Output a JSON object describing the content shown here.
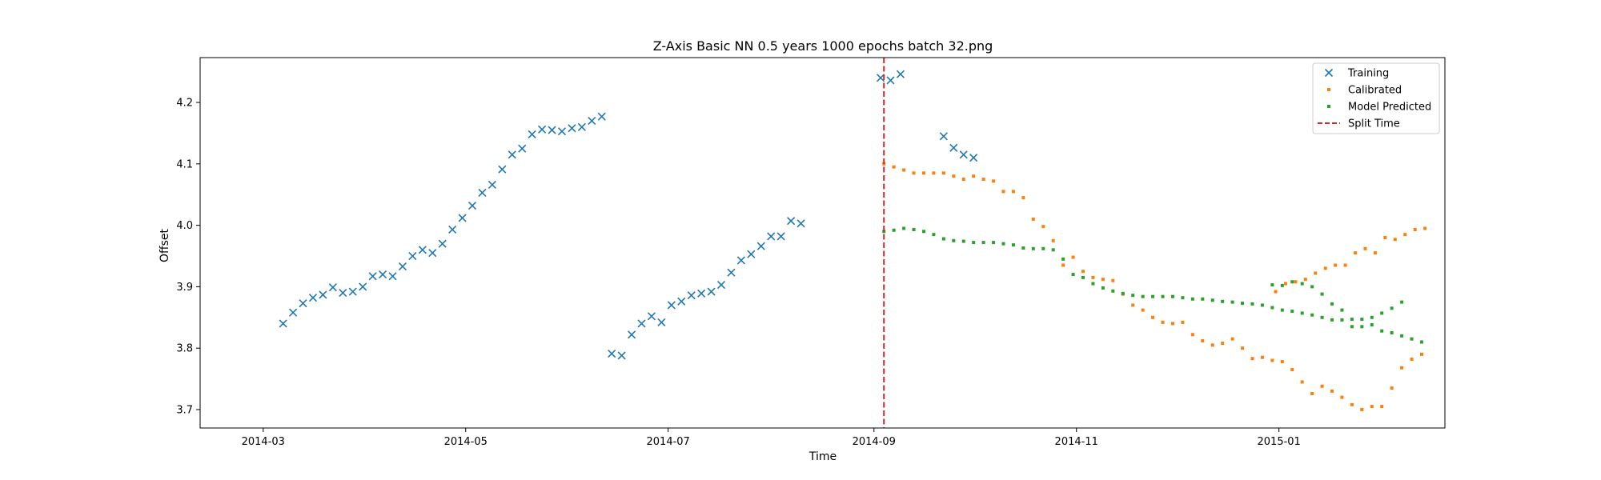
{
  "chart_data": {
    "type": "scatter",
    "title": "Z-Axis Basic NN 0.5 years 1000 epochs batch 32.png",
    "xlabel": "Time",
    "ylabel": "Offset",
    "x_ticks": [
      "2014-03",
      "2014-05",
      "2014-07",
      "2014-09",
      "2014-11",
      "2015-01"
    ],
    "y_ticks": [
      "3.7",
      "3.8",
      "3.9",
      "4.0",
      "4.1",
      "4.2"
    ],
    "xlim": [
      "2014-02-10",
      "2015-02-20"
    ],
    "ylim": [
      3.67,
      4.273
    ],
    "grid": false,
    "legend_position": "top-right",
    "split_time": "2014-09-04",
    "series": [
      {
        "name": "Training",
        "marker": "x",
        "color": "#1f77b4",
        "points": [
          [
            "2014-03-07",
            3.84
          ],
          [
            "2014-03-10",
            3.858
          ],
          [
            "2014-03-13",
            3.873
          ],
          [
            "2014-03-16",
            3.882
          ],
          [
            "2014-03-19",
            3.887
          ],
          [
            "2014-03-22",
            3.899
          ],
          [
            "2014-03-25",
            3.89
          ],
          [
            "2014-03-28",
            3.892
          ],
          [
            "2014-03-31",
            3.9
          ],
          [
            "2014-04-03",
            3.917
          ],
          [
            "2014-04-06",
            3.92
          ],
          [
            "2014-04-09",
            3.917
          ],
          [
            "2014-04-12",
            3.933
          ],
          [
            "2014-04-15",
            3.95
          ],
          [
            "2014-04-18",
            3.96
          ],
          [
            "2014-04-21",
            3.955
          ],
          [
            "2014-04-24",
            3.97
          ],
          [
            "2014-04-27",
            3.993
          ],
          [
            "2014-04-30",
            4.012
          ],
          [
            "2014-05-03",
            4.032
          ],
          [
            "2014-05-06",
            4.053
          ],
          [
            "2014-05-09",
            4.066
          ],
          [
            "2014-05-12",
            4.091
          ],
          [
            "2014-05-15",
            4.115
          ],
          [
            "2014-05-18",
            4.125
          ],
          [
            "2014-05-21",
            4.148
          ],
          [
            "2014-05-24",
            4.156
          ],
          [
            "2014-05-27",
            4.155
          ],
          [
            "2014-05-30",
            4.153
          ],
          [
            "2014-06-02",
            4.158
          ],
          [
            "2014-06-05",
            4.16
          ],
          [
            "2014-06-08",
            4.17
          ],
          [
            "2014-06-11",
            4.177
          ],
          [
            "2014-06-14",
            3.791
          ],
          [
            "2014-06-17",
            3.788
          ],
          [
            "2014-06-20",
            3.822
          ],
          [
            "2014-06-23",
            3.84
          ],
          [
            "2014-06-26",
            3.852
          ],
          [
            "2014-06-29",
            3.842
          ],
          [
            "2014-07-02",
            3.87
          ],
          [
            "2014-07-05",
            3.876
          ],
          [
            "2014-07-08",
            3.886
          ],
          [
            "2014-07-11",
            3.889
          ],
          [
            "2014-07-14",
            3.892
          ],
          [
            "2014-07-17",
            3.903
          ],
          [
            "2014-07-20",
            3.923
          ],
          [
            "2014-07-23",
            3.943
          ],
          [
            "2014-07-26",
            3.953
          ],
          [
            "2014-07-29",
            3.966
          ],
          [
            "2014-08-01",
            3.982
          ],
          [
            "2014-08-04",
            3.982
          ],
          [
            "2014-08-07",
            4.007
          ],
          [
            "2014-08-10",
            4.003
          ],
          [
            "2014-09-03",
            4.24
          ],
          [
            "2014-09-06",
            4.236
          ],
          [
            "2014-09-09",
            4.246
          ],
          [
            "2014-09-22",
            4.145
          ],
          [
            "2014-09-25",
            4.126
          ],
          [
            "2014-09-28",
            4.115
          ],
          [
            "2014-10-01",
            4.11
          ]
        ]
      },
      {
        "name": "Calibrated",
        "marker": "dot",
        "color": "#ff7f0e",
        "points": [
          [
            "2014-09-04",
            4.1
          ],
          [
            "2014-09-07",
            4.095
          ],
          [
            "2014-09-10",
            4.09
          ],
          [
            "2014-09-13",
            4.085
          ],
          [
            "2014-09-16",
            4.085
          ],
          [
            "2014-09-19",
            4.085
          ],
          [
            "2014-09-22",
            4.085
          ],
          [
            "2014-09-25",
            4.08
          ],
          [
            "2014-09-28",
            4.075
          ],
          [
            "2014-10-01",
            4.08
          ],
          [
            "2014-10-04",
            4.075
          ],
          [
            "2014-10-07",
            4.072
          ],
          [
            "2014-10-10",
            4.055
          ],
          [
            "2014-10-13",
            4.055
          ],
          [
            "2014-10-16",
            4.045
          ],
          [
            "2014-10-19",
            4.01
          ],
          [
            "2014-10-22",
            3.998
          ],
          [
            "2014-10-25",
            3.975
          ],
          [
            "2014-10-28",
            3.935
          ],
          [
            "2014-10-31",
            3.948
          ],
          [
            "2014-11-03",
            3.925
          ],
          [
            "2014-11-06",
            3.915
          ],
          [
            "2014-11-09",
            3.912
          ],
          [
            "2014-11-12",
            3.91
          ],
          [
            "2014-11-15",
            3.888
          ],
          [
            "2014-11-18",
            3.87
          ],
          [
            "2014-11-21",
            3.862
          ],
          [
            "2014-11-24",
            3.85
          ],
          [
            "2014-11-27",
            3.842
          ],
          [
            "2014-11-30",
            3.84
          ],
          [
            "2014-12-03",
            3.842
          ],
          [
            "2014-12-06",
            3.822
          ],
          [
            "2014-12-09",
            3.812
          ],
          [
            "2014-12-12",
            3.805
          ],
          [
            "2014-12-15",
            3.808
          ],
          [
            "2014-12-18",
            3.815
          ],
          [
            "2014-12-21",
            3.8
          ],
          [
            "2014-12-24",
            3.783
          ],
          [
            "2014-12-27",
            3.785
          ],
          [
            "2014-12-30",
            3.78
          ],
          [
            "2015-01-02",
            3.778
          ],
          [
            "2015-01-05",
            3.765
          ],
          [
            "2015-01-08",
            3.745
          ],
          [
            "2015-01-11",
            3.726
          ],
          [
            "2015-01-14",
            3.738
          ],
          [
            "2015-01-17",
            3.73
          ],
          [
            "2015-01-20",
            3.72
          ],
          [
            "2015-01-23",
            3.708
          ],
          [
            "2015-01-26",
            3.7
          ],
          [
            "2015-01-29",
            3.705
          ],
          [
            "2015-02-01",
            3.705
          ],
          [
            "2015-02-04",
            3.735
          ],
          [
            "2015-02-07",
            3.768
          ],
          [
            "2015-02-10",
            3.782
          ],
          [
            "2015-02-13",
            3.79
          ],
          [
            "2014-12-31",
            3.892
          ],
          [
            "2015-01-03",
            3.905
          ],
          [
            "2015-01-06",
            3.908
          ],
          [
            "2015-01-09",
            3.912
          ],
          [
            "2015-01-12",
            3.922
          ],
          [
            "2015-01-15",
            3.93
          ],
          [
            "2015-01-18",
            3.935
          ],
          [
            "2015-01-21",
            3.935
          ],
          [
            "2015-01-24",
            3.955
          ],
          [
            "2015-01-27",
            3.962
          ],
          [
            "2015-01-30",
            3.955
          ],
          [
            "2015-02-02",
            3.98
          ],
          [
            "2015-02-05",
            3.977
          ],
          [
            "2015-02-08",
            3.985
          ],
          [
            "2015-02-11",
            3.993
          ],
          [
            "2015-02-14",
            3.995
          ]
        ]
      },
      {
        "name": "Model Predicted",
        "marker": "dot",
        "color": "#2ca02c",
        "points": [
          [
            "2014-09-04",
            3.99
          ],
          [
            "2014-09-07",
            3.992
          ],
          [
            "2014-09-10",
            3.995
          ],
          [
            "2014-09-13",
            3.993
          ],
          [
            "2014-09-16",
            3.99
          ],
          [
            "2014-09-19",
            3.985
          ],
          [
            "2014-09-22",
            3.978
          ],
          [
            "2014-09-25",
            3.975
          ],
          [
            "2014-09-28",
            3.974
          ],
          [
            "2014-10-01",
            3.972
          ],
          [
            "2014-10-04",
            3.972
          ],
          [
            "2014-10-07",
            3.972
          ],
          [
            "2014-10-10",
            3.97
          ],
          [
            "2014-10-13",
            3.968
          ],
          [
            "2014-10-16",
            3.963
          ],
          [
            "2014-10-19",
            3.962
          ],
          [
            "2014-10-22",
            3.962
          ],
          [
            "2014-10-25",
            3.96
          ],
          [
            "2014-10-28",
            3.945
          ],
          [
            "2014-10-31",
            3.92
          ],
          [
            "2014-11-03",
            3.915
          ],
          [
            "2014-11-06",
            3.905
          ],
          [
            "2014-11-09",
            3.898
          ],
          [
            "2014-11-12",
            3.893
          ],
          [
            "2014-11-15",
            3.889
          ],
          [
            "2014-11-18",
            3.886
          ],
          [
            "2014-11-21",
            3.884
          ],
          [
            "2014-11-24",
            3.884
          ],
          [
            "2014-11-27",
            3.884
          ],
          [
            "2014-11-30",
            3.884
          ],
          [
            "2014-12-03",
            3.882
          ],
          [
            "2014-12-06",
            3.88
          ],
          [
            "2014-12-09",
            3.88
          ],
          [
            "2014-12-12",
            3.878
          ],
          [
            "2014-12-15",
            3.876
          ],
          [
            "2014-12-18",
            3.875
          ],
          [
            "2014-12-21",
            3.873
          ],
          [
            "2014-12-24",
            3.872
          ],
          [
            "2014-12-27",
            3.87
          ],
          [
            "2014-12-30",
            3.866
          ],
          [
            "2015-01-02",
            3.862
          ],
          [
            "2015-01-05",
            3.86
          ],
          [
            "2015-01-08",
            3.857
          ],
          [
            "2015-01-11",
            3.854
          ],
          [
            "2015-01-14",
            3.85
          ],
          [
            "2015-01-17",
            3.846
          ],
          [
            "2015-01-20",
            3.846
          ],
          [
            "2015-01-23",
            3.847
          ],
          [
            "2015-01-26",
            3.847
          ],
          [
            "2015-01-29",
            3.85
          ],
          [
            "2015-02-01",
            3.857
          ],
          [
            "2015-02-04",
            3.865
          ],
          [
            "2015-02-07",
            3.875
          ],
          [
            "2014-12-30",
            3.903
          ],
          [
            "2015-01-02",
            3.902
          ],
          [
            "2015-01-05",
            3.908
          ],
          [
            "2015-01-08",
            3.905
          ],
          [
            "2015-01-11",
            3.9
          ],
          [
            "2015-01-14",
            3.888
          ],
          [
            "2015-01-17",
            3.872
          ],
          [
            "2015-01-20",
            3.862
          ],
          [
            "2015-01-23",
            3.835
          ],
          [
            "2015-01-26",
            3.835
          ],
          [
            "2015-01-29",
            3.838
          ],
          [
            "2015-02-01",
            3.828
          ],
          [
            "2015-02-04",
            3.825
          ],
          [
            "2015-02-07",
            3.82
          ],
          [
            "2015-02-10",
            3.815
          ],
          [
            "2015-02-13",
            3.81
          ]
        ]
      }
    ],
    "split_line": {
      "name": "Split Time",
      "style": "dashed",
      "color": "#d62728"
    }
  }
}
